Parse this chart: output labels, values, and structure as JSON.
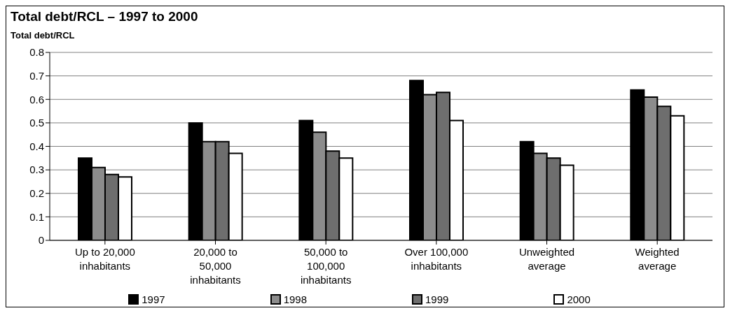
{
  "chart_data": {
    "type": "bar",
    "title": "Total debt/RCL – 1997 to 2000",
    "ylabel": "Total debt/RCL",
    "categories": [
      "Up to 20,000 inhabitants",
      "20,000 to 50,000 inhabitants",
      "50,000 to 100,000 inhabitants",
      "Over 100,000 inhabitants",
      "Unweighted average",
      "Weighted average"
    ],
    "series": [
      {
        "name": "1997",
        "color": "#000000",
        "values": [
          0.35,
          0.5,
          0.51,
          0.68,
          0.42,
          0.64
        ]
      },
      {
        "name": "1998",
        "color": "#8c8c8c",
        "values": [
          0.31,
          0.42,
          0.46,
          0.62,
          0.37,
          0.61
        ]
      },
      {
        "name": "1999",
        "color": "#6e6e6e",
        "values": [
          0.28,
          0.42,
          0.38,
          0.63,
          0.35,
          0.57
        ]
      },
      {
        "name": "2000",
        "color": "#ffffff",
        "values": [
          0.27,
          0.37,
          0.35,
          0.51,
          0.32,
          0.53
        ]
      }
    ],
    "ylim": [
      0,
      0.8
    ],
    "yticks": [
      0,
      0.1,
      0.2,
      0.3,
      0.4,
      0.5,
      0.6,
      0.7,
      0.8
    ],
    "grid": "y",
    "legend": "bottom"
  }
}
